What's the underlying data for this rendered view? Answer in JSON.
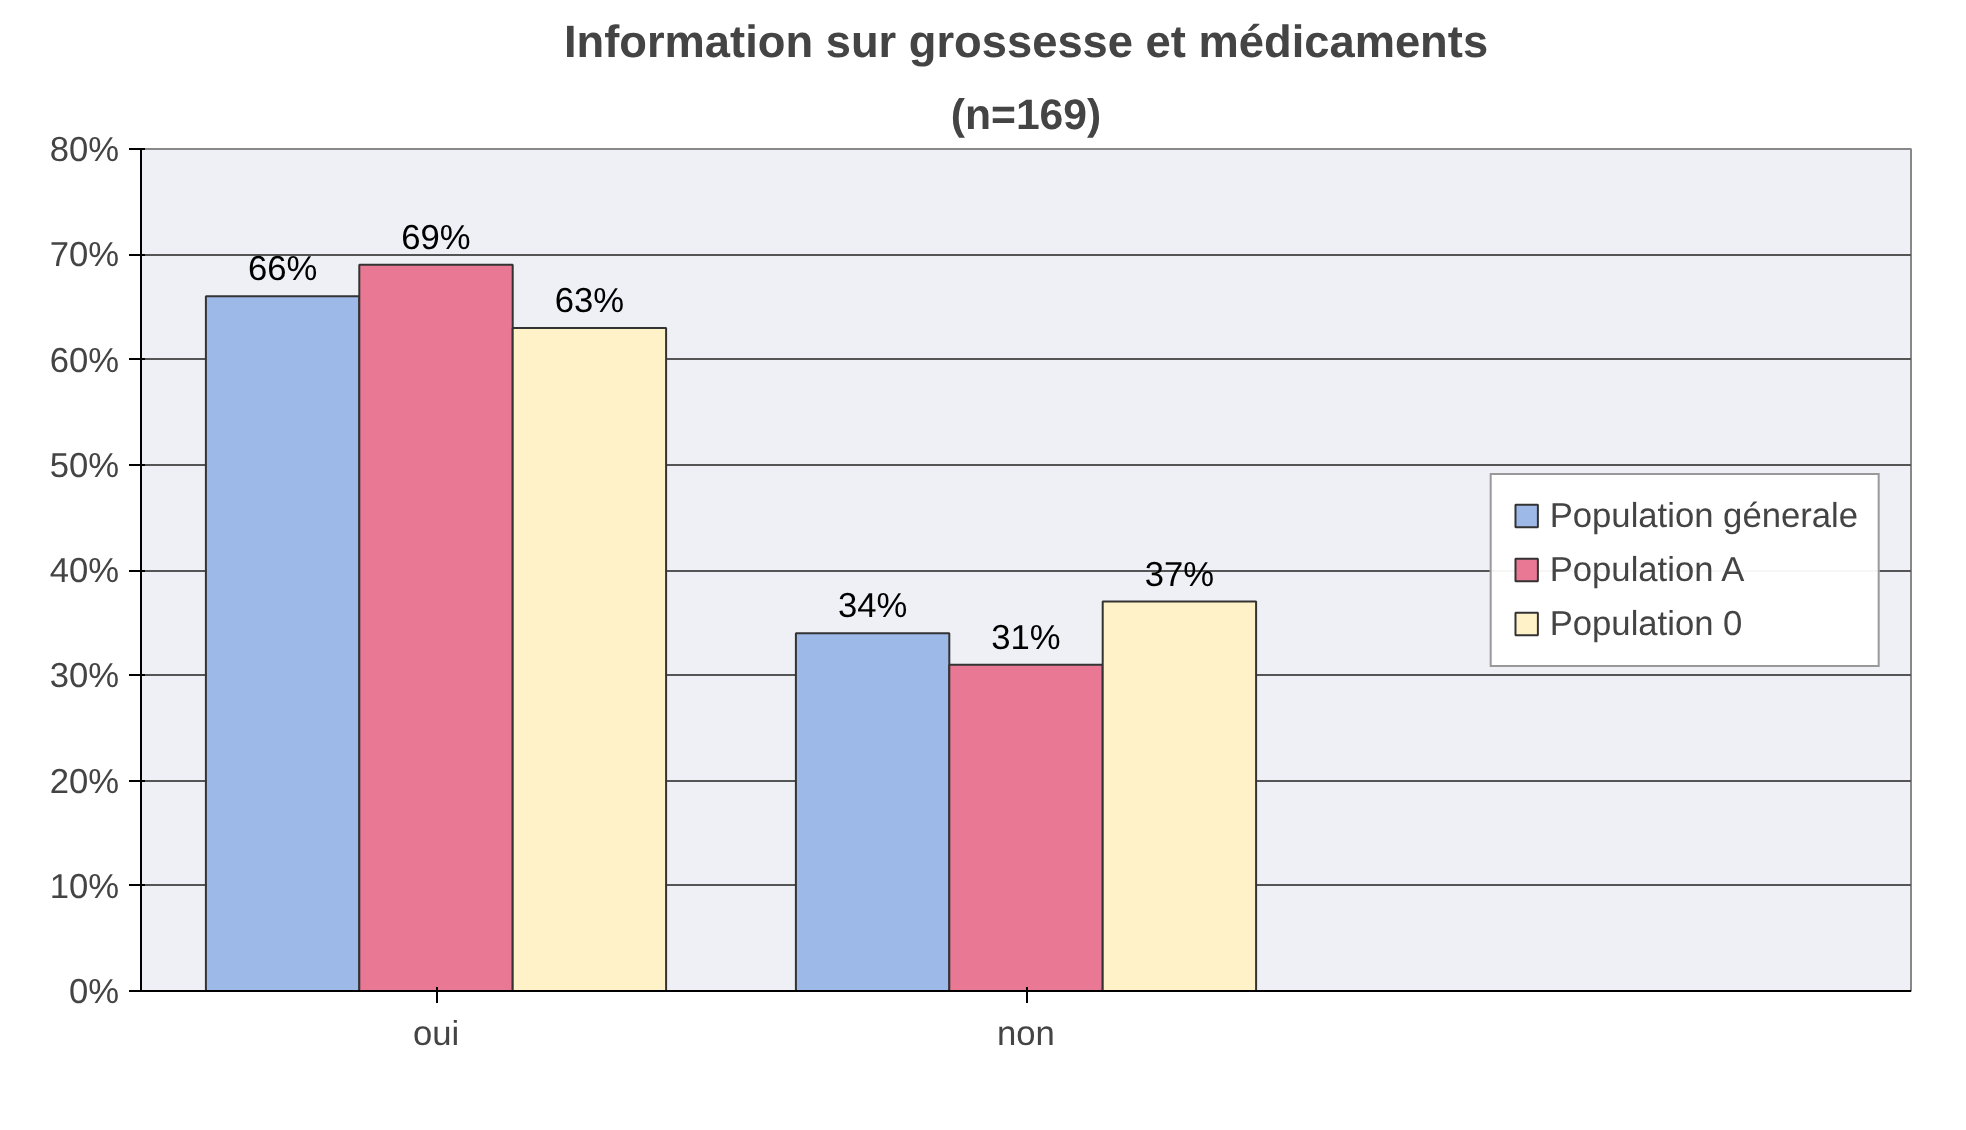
{
  "chart_data": {
    "type": "bar",
    "title": "Information sur grossesse et médicaments",
    "subtitle": "(n=169)",
    "categories": [
      "oui",
      "non"
    ],
    "series": [
      {
        "name": "Population génerale",
        "color": "#9db9e8",
        "values": [
          66,
          34
        ]
      },
      {
        "name": "Population A",
        "color": "#e87894",
        "values": [
          69,
          31
        ]
      },
      {
        "name": "Population 0",
        "color": "#fff2c8",
        "values": [
          63,
          37
        ]
      }
    ],
    "ylim": [
      0,
      80
    ],
    "yticks": [
      {
        "value": 0,
        "label": "0%"
      },
      {
        "value": 10,
        "label": "10%"
      },
      {
        "value": 20,
        "label": "20%"
      },
      {
        "value": 30,
        "label": "30%"
      },
      {
        "value": 40,
        "label": "40%"
      },
      {
        "value": 50,
        "label": "50%"
      },
      {
        "value": 60,
        "label": "60%"
      },
      {
        "value": 70,
        "label": "70%"
      },
      {
        "value": 80,
        "label": "80%"
      }
    ],
    "value_labels": [
      [
        "66%",
        "34%"
      ],
      [
        "69%",
        "31%"
      ],
      [
        "63%",
        "37%"
      ]
    ],
    "grid": "y",
    "legend": "right"
  }
}
